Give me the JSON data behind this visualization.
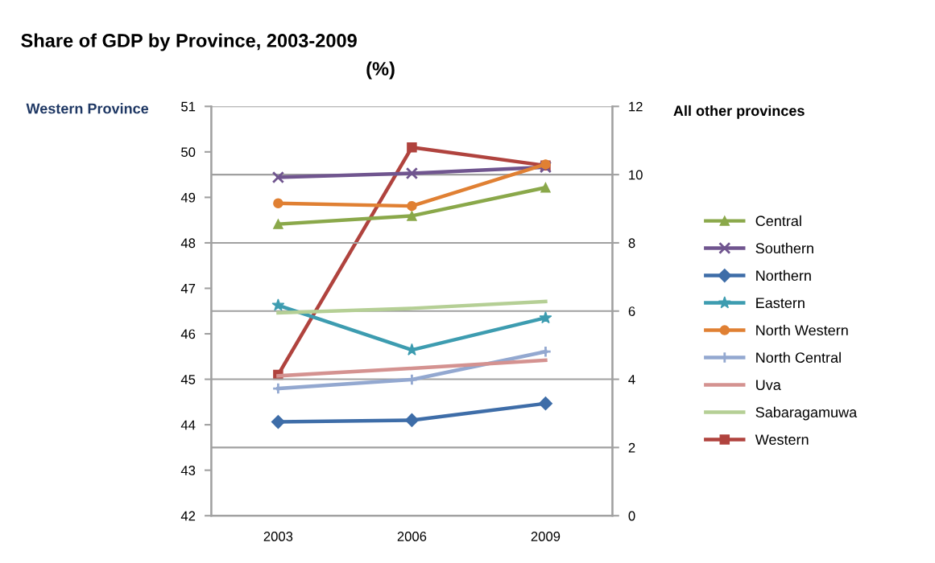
{
  "chart_data": {
    "type": "line",
    "title": "Share of GDP by Province, 2003-2009",
    "subtitle": "(%)",
    "ylabel": "Western Province",
    "y2label": "All other provinces",
    "categories": [
      "2003",
      "2006",
      "2009"
    ],
    "ylim": [
      42,
      51
    ],
    "yticks": [
      42,
      43,
      44,
      45,
      46,
      47,
      48,
      49,
      50,
      51
    ],
    "y2lim": [
      0,
      12
    ],
    "y2ticks": [
      0,
      2,
      4,
      6,
      8,
      10,
      12
    ],
    "grid": "y",
    "legend": "right",
    "line_style": "solid",
    "series": [
      {
        "name": "Central",
        "color": "#8aa84a",
        "marker": "triangle",
        "axis": "y2",
        "values": [
          8.55,
          8.79,
          9.62
        ]
      },
      {
        "name": "Southern",
        "color": "#70558f",
        "marker": "cross",
        "axis": "y2",
        "values": [
          9.92,
          10.04,
          10.22
        ]
      },
      {
        "name": "Northern",
        "color": "#3e6da8",
        "marker": "diamond",
        "axis": "y2",
        "values": [
          2.75,
          2.8,
          3.29
        ]
      },
      {
        "name": "Eastern",
        "color": "#3d9cb0",
        "marker": "star",
        "axis": "y2",
        "values": [
          6.17,
          4.86,
          5.8
        ]
      },
      {
        "name": "North Western",
        "color": "#e08033",
        "marker": "circle",
        "axis": "y2",
        "values": [
          9.16,
          9.08,
          10.3
        ]
      },
      {
        "name": "North Central",
        "color": "#93a8d0",
        "marker": "plus",
        "axis": "y2",
        "values": [
          3.73,
          3.99,
          4.81
        ]
      },
      {
        "name": "Uva",
        "color": "#d49290",
        "marker": "none",
        "axis": "y2",
        "values": [
          4.1,
          4.32,
          4.56
        ]
      },
      {
        "name": "Sabaragamuwa",
        "color": "#b5cf95",
        "marker": "none",
        "axis": "y2",
        "values": [
          5.95,
          6.08,
          6.28
        ]
      },
      {
        "name": "Western",
        "color": "#b0433e",
        "marker": "square",
        "axis": "y",
        "values": [
          45.1,
          50.1,
          49.7
        ]
      }
    ]
  }
}
